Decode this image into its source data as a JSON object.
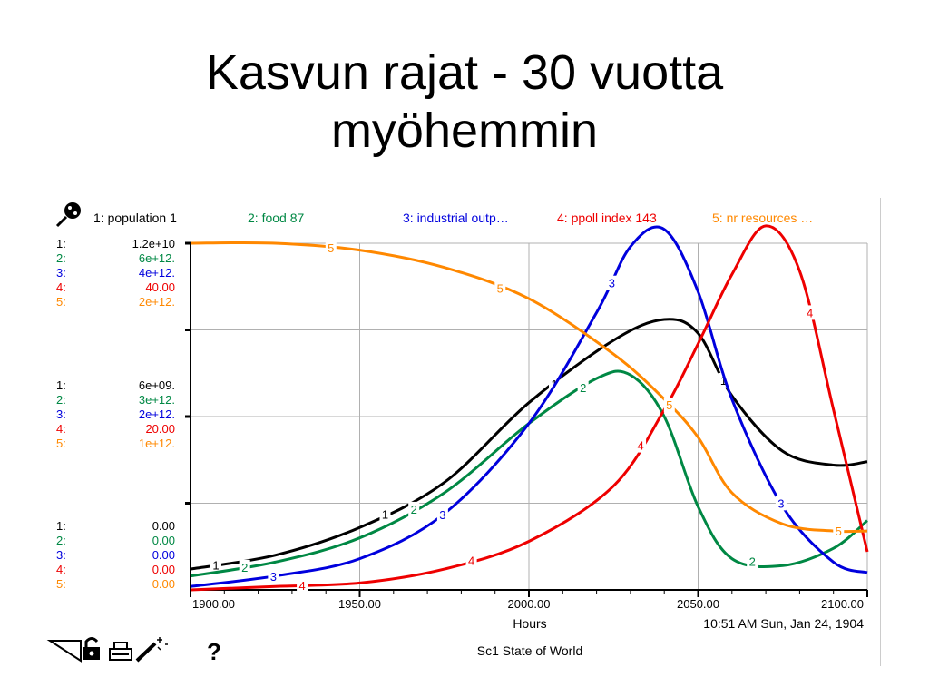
{
  "slide": {
    "title_line1": "Kasvun rajat - 30 vuotta",
    "title_line2": "myöhemmin"
  },
  "legend": [
    {
      "num": "1",
      "text": "1: population 1",
      "color": "#000000"
    },
    {
      "num": "2",
      "text": "2: food 87",
      "color": "#008844"
    },
    {
      "num": "3",
      "text": "3: industrial outp…",
      "color": "#0000dd"
    },
    {
      "num": "4",
      "text": "4: ppoll index 143",
      "color": "#ee0000"
    },
    {
      "num": "5",
      "text": "5: nr resources …",
      "color": "#ff8800"
    }
  ],
  "scale_blocks": [
    {
      "level": "top",
      "rows": [
        {
          "label": "1:",
          "value": "1.2e+10"
        },
        {
          "label": "2:",
          "value": "6e+12."
        },
        {
          "label": "3:",
          "value": "4e+12."
        },
        {
          "label": "4:",
          "value": "40.00"
        },
        {
          "label": "5:",
          "value": "2e+12."
        }
      ]
    },
    {
      "level": "middle",
      "rows": [
        {
          "label": "1:",
          "value": "6e+09."
        },
        {
          "label": "2:",
          "value": "3e+12."
        },
        {
          "label": "3:",
          "value": "2e+12."
        },
        {
          "label": "4:",
          "value": "20.00"
        },
        {
          "label": "5:",
          "value": "1e+12."
        }
      ]
    },
    {
      "level": "bottom",
      "rows": [
        {
          "label": "1:",
          "value": "0.00"
        },
        {
          "label": "2:",
          "value": "0.00"
        },
        {
          "label": "3:",
          "value": "0.00"
        },
        {
          "label": "4:",
          "value": "0.00"
        },
        {
          "label": "5:",
          "value": "0.00"
        }
      ]
    }
  ],
  "footer": {
    "x_unit": "Hours",
    "timestamp": "10:51 AM   Sun, Jan 24, 1904",
    "page_name": "Sc1 State of World",
    "help": "?"
  },
  "icons": [
    "graph-pad-icon",
    "lock-icon",
    "print-icon",
    "magic-wand-icon",
    "triangle-tool-icon"
  ],
  "chart_data": {
    "type": "line",
    "xlim": [
      1900,
      2100
    ],
    "ylim": [
      0,
      1
    ],
    "x_ticks": [
      1900,
      1950,
      2000,
      2050,
      2100
    ],
    "x_tick_labels": [
      "1900.00",
      "1950.00",
      "2000.00",
      "2050.00",
      "2100.00"
    ],
    "grid": true,
    "legend_position": "top",
    "series": [
      {
        "name": "population 1",
        "color": "#000000",
        "x": [
          1900,
          1925,
          1950,
          1975,
          2000,
          2025,
          2040,
          2050,
          2060,
          2075,
          2090,
          2100
        ],
        "y": [
          0.06,
          0.1,
          0.18,
          0.31,
          0.54,
          0.72,
          0.78,
          0.74,
          0.56,
          0.4,
          0.36,
          0.37
        ]
      },
      {
        "name": "food 87",
        "color": "#008844",
        "x": [
          1900,
          1925,
          1950,
          1975,
          2000,
          2020,
          2030,
          2040,
          2050,
          2060,
          2075,
          2090,
          2100
        ],
        "y": [
          0.04,
          0.08,
          0.15,
          0.28,
          0.48,
          0.61,
          0.62,
          0.5,
          0.24,
          0.09,
          0.07,
          0.12,
          0.2
        ]
      },
      {
        "name": "industrial outp…",
        "color": "#0000dd",
        "x": [
          1900,
          1925,
          1950,
          1975,
          2000,
          2020,
          2030,
          2040,
          2050,
          2060,
          2075,
          2090,
          2100
        ],
        "y": [
          0.01,
          0.04,
          0.09,
          0.22,
          0.48,
          0.8,
          0.99,
          1.04,
          0.86,
          0.55,
          0.24,
          0.08,
          0.05
        ]
      },
      {
        "name": "ppoll index 143",
        "color": "#ee0000",
        "x": [
          1900,
          1925,
          1950,
          1975,
          2000,
          2025,
          2040,
          2050,
          2060,
          2070,
          2080,
          2090,
          2100
        ],
        "y": [
          0.0,
          0.01,
          0.02,
          0.06,
          0.14,
          0.3,
          0.52,
          0.71,
          0.91,
          1.05,
          0.92,
          0.52,
          0.11
        ]
      },
      {
        "name": "nr resources …",
        "color": "#ff8800",
        "x": [
          1900,
          1925,
          1950,
          1975,
          2000,
          2025,
          2040,
          2050,
          2060,
          2075,
          2090,
          2100
        ],
        "y": [
          1.0,
          1.0,
          0.98,
          0.93,
          0.84,
          0.68,
          0.55,
          0.44,
          0.28,
          0.19,
          0.17,
          0.17
        ]
      }
    ]
  }
}
